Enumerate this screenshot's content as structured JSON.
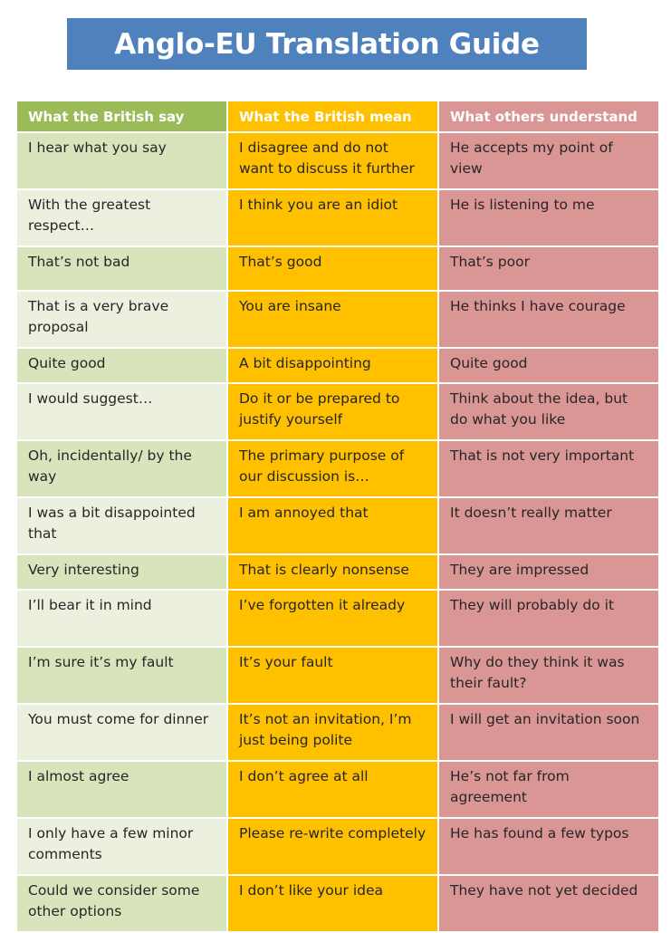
{
  "title": "Anglo-EU Translation Guide",
  "columns": [
    "What the British say",
    "What the British mean",
    "What others understand"
  ],
  "colors": {
    "title_bg": "#4f81bd",
    "header_british": "#9bbb59",
    "header_mean": "#ffc000",
    "header_others": "#da9694",
    "cell_british_dark": "#d8e4bc",
    "cell_british_light": "#ebf1de",
    "cell_mean": "#ffc000",
    "cell_others": "#da9694"
  },
  "rows": [
    {
      "say": "I hear what you say",
      "mean": "I disagree and do not want to discuss it further",
      "understand": "He accepts my point of view"
    },
    {
      "say": "With the greatest respect…",
      "mean": "I think you are an idiot",
      "understand": "He is listening to me"
    },
    {
      "say": "That’s not bad",
      "mean": "That’s good",
      "understand": "That’s poor"
    },
    {
      "say": "That is a very brave proposal",
      "mean": "You are insane",
      "understand": "He thinks I have courage"
    },
    {
      "say": "Quite good",
      "mean": "A bit disappointing",
      "understand": "Quite good"
    },
    {
      "say": "I would suggest…",
      "mean": "Do it or be prepared to justify yourself",
      "understand": "Think about the idea, but do what you like"
    },
    {
      "say": "Oh, incidentally/ by the way",
      "mean": "The primary purpose of our discussion is…",
      "understand": "That is not very important"
    },
    {
      "say": "I was a bit disappointed that",
      "mean": "I am annoyed that",
      "understand": "It doesn’t really matter"
    },
    {
      "say": "Very interesting",
      "mean": "That is clearly nonsense",
      "understand": "They are impressed"
    },
    {
      "say": "I’ll bear it in mind",
      "mean": "I’ve forgotten it already",
      "understand": "They will probably do it"
    },
    {
      "say": "I’m sure it’s my fault",
      "mean": "It’s your fault",
      "understand": "Why do they think it was their fault?"
    },
    {
      "say": "You must come for dinner",
      "mean": "It’s not an invitation, I’m just being polite",
      "understand": "I will get an invitation soon"
    },
    {
      "say": "I almost agree",
      "mean": "I don’t agree at all",
      "understand": "He’s not far from agreement"
    },
    {
      "say": "I only have a few minor comments",
      "mean": "Please re-write completely",
      "understand": "He has found a few typos"
    },
    {
      "say": "Could we consider some other options",
      "mean": "I don’t like your idea",
      "understand": "They have not yet decided"
    }
  ]
}
